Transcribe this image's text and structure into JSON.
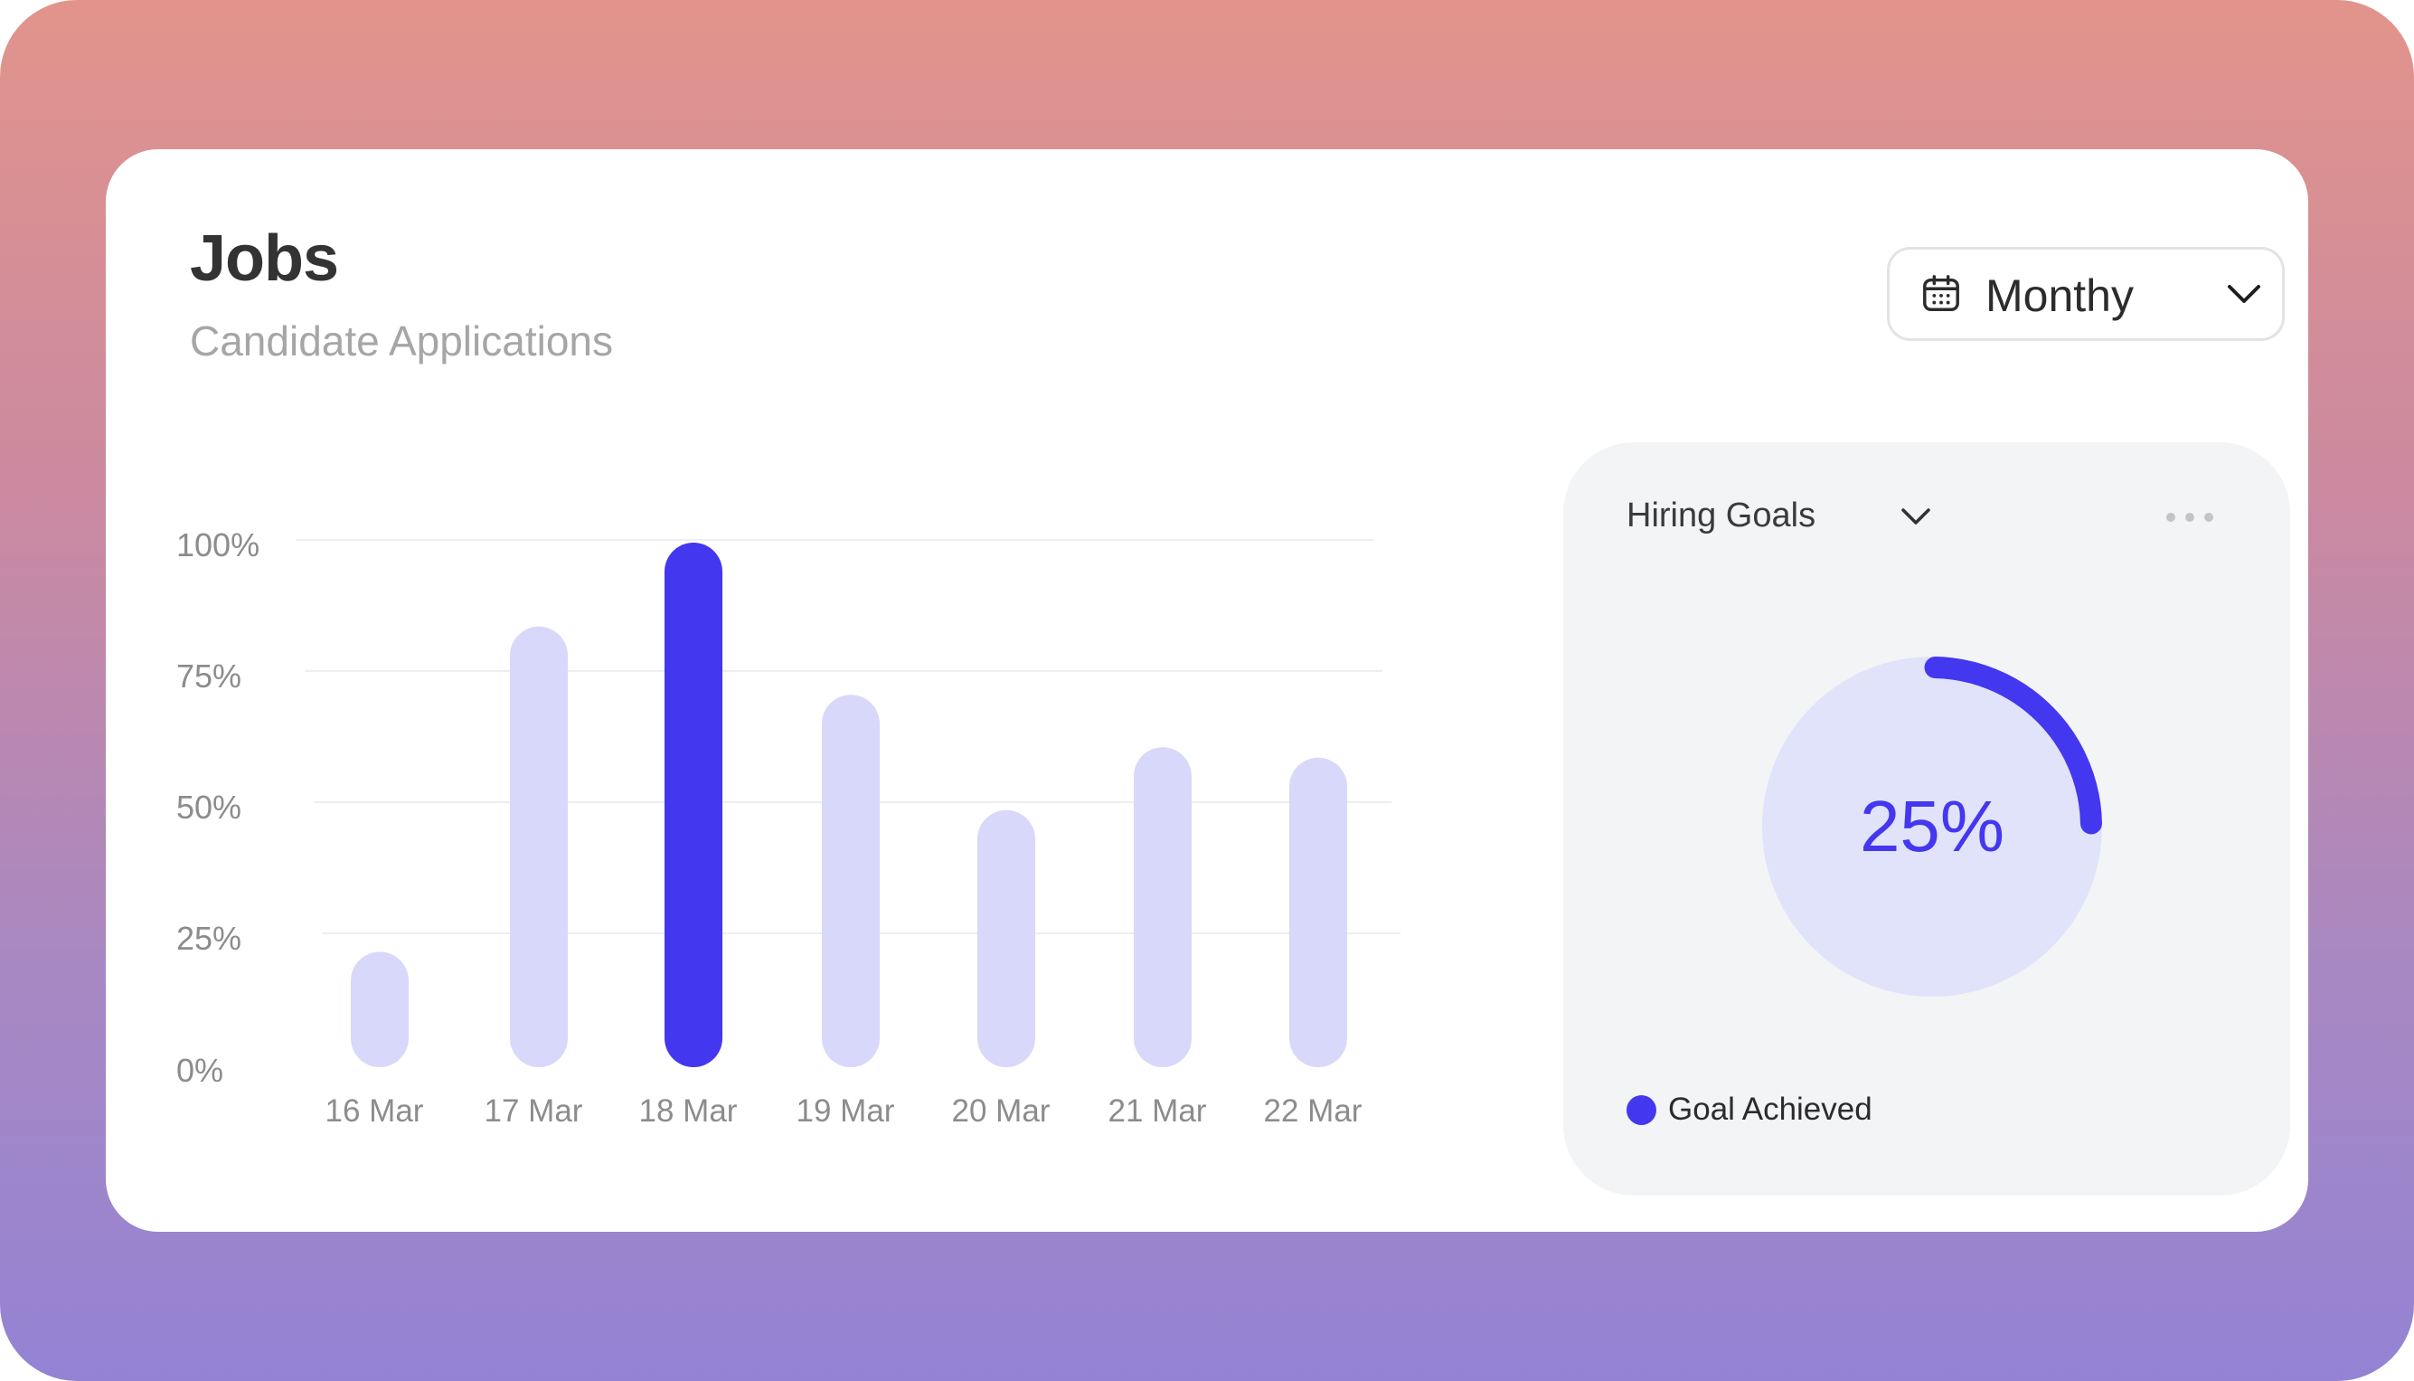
{
  "header": {
    "title": "Jobs",
    "subtitle": "Candidate Applications"
  },
  "period_select": {
    "icon": "calendar-icon",
    "label": "Monthy",
    "chevron": "chevron-down-icon"
  },
  "chart_data": {
    "type": "bar",
    "categories": [
      "16 Mar",
      "17 Mar",
      "18 Mar",
      "19 Mar",
      "20 Mar",
      "21 Mar",
      "22 Mar"
    ],
    "values": [
      22,
      84,
      100,
      71,
      49,
      61,
      59
    ],
    "y_ticks": [
      "100%",
      "75%",
      "50%",
      "25%",
      "0%"
    ],
    "ylim": [
      0,
      100
    ],
    "highlight_index": 2,
    "grid": true,
    "colors": {
      "highlight": "#4337ef",
      "default": "#d8d8fb",
      "grid": "#eeeeee",
      "tick": "#8c8c8c"
    }
  },
  "hiring_goals": {
    "title": "Hiring Goals",
    "chevron": "chevron-down-icon",
    "menu_icon": "more-horizontal-icon",
    "percent_label": "25%",
    "value": 25,
    "legend_label": "Goal Achieved",
    "colors": {
      "arc": "#4337ef",
      "disc": "#e1e3fb"
    }
  }
}
